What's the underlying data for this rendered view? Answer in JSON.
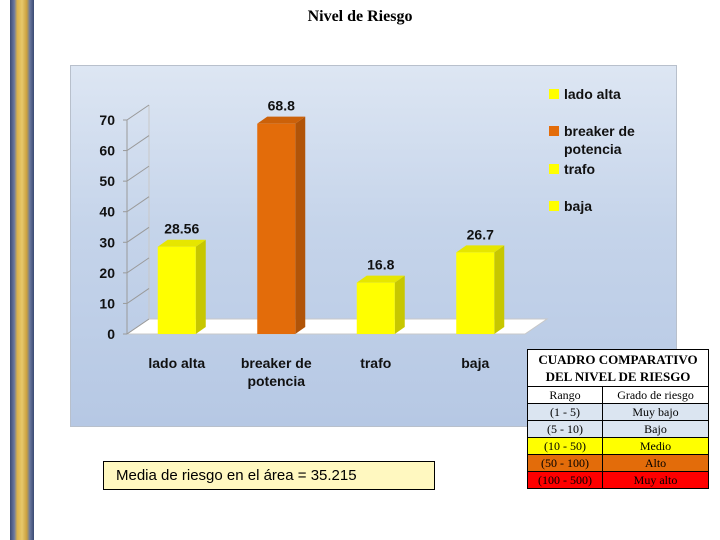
{
  "page": {
    "title": "Nivel de Riesgo",
    "mean_text": "Media de riesgo en el área = 35.215"
  },
  "colors": {
    "yellow": "#ffff00",
    "orange": "#e36c0a",
    "light_blue": "#dbe5f1"
  },
  "chart_data": {
    "type": "bar",
    "title": "",
    "categories": [
      "lado alta",
      "breaker de potencia",
      "trafo",
      "baja"
    ],
    "category_lines": [
      [
        "lado alta"
      ],
      [
        "breaker de",
        "potencia"
      ],
      [
        "trafo"
      ],
      [
        "baja"
      ]
    ],
    "series": [
      {
        "values": [
          28.56,
          68.8,
          16.8,
          26.7
        ]
      }
    ],
    "data_labels": [
      "28.56",
      "68.8",
      "16.8",
      "26.7"
    ],
    "bar_colors": [
      "#ffff00",
      "#e36c0a",
      "#ffff00",
      "#ffff00"
    ],
    "ylim": [
      0,
      70
    ],
    "yticks": [
      "0",
      "10",
      "20",
      "30",
      "40",
      "50",
      "60",
      "70"
    ],
    "grid": false,
    "legend_position": "right",
    "legend": [
      {
        "lines": [
          "lado alta"
        ],
        "color": "#ffff00"
      },
      {
        "lines": [
          "breaker de",
          "potencia"
        ],
        "color": "#e36c0a"
      },
      {
        "lines": [
          "trafo"
        ],
        "color": "#ffff00"
      },
      {
        "lines": [
          "baja"
        ],
        "color": "#ffff00"
      }
    ]
  },
  "table": {
    "title_line1": "CUADRO COMPARATIVO",
    "title_line2": "DEL NIVEL DE RIESGO",
    "header": [
      "Rango",
      "Grado de riesgo"
    ],
    "rows": [
      {
        "range": "(1 - 5)",
        "grade": "Muy bajo",
        "color": "#dbe5f1"
      },
      {
        "range": "(5 - 10)",
        "grade": "Bajo",
        "color": "#dbe5f1"
      },
      {
        "range": "(10 - 50)",
        "grade": "Medio",
        "color": "#ffff00"
      },
      {
        "range": "(50 - 100)",
        "grade": "Alto",
        "color": "#e36c0a"
      },
      {
        "range": "(100 - 500)",
        "grade": "Muy alto",
        "color": "#ff0000"
      }
    ]
  }
}
